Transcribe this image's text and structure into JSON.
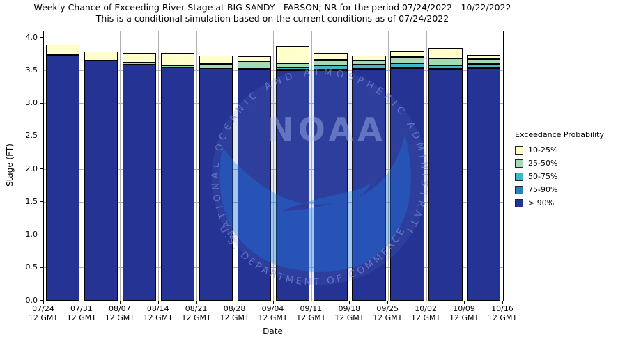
{
  "figure": {
    "title_line1": "Weekly Chance of Exceeding River Stage at BIG SANDY - FARSON; NR for the period 07/24/2022 - 10/22/2022",
    "title_line2": "This is a conditional simulation based on the current conditions as of 07/24/2022"
  },
  "legend": {
    "title": "Exceedance Probability",
    "items": [
      {
        "label": "10-25%",
        "color": "#ffffcc"
      },
      {
        "label": "25-50%",
        "color": "#a1dab4"
      },
      {
        "label": "50-75%",
        "color": "#41b6c4"
      },
      {
        "label": "75-90%",
        "color": "#2c7fb8"
      },
      {
        "label": "> 90%",
        "color": "#253494"
      }
    ]
  },
  "watermark": {
    "name": "noaa-logo",
    "ring_text_top": "NATIONAL OCEANIC AND ATMOSPHERIC ADMINISTRATION",
    "ring_text_bottom": "U.S. DEPARTMENT OF COMMERCE",
    "center_text": "NOAA"
  },
  "chart_data": {
    "type": "bar",
    "subtype": "stacked-exceedance",
    "title": "Weekly Chance of Exceeding River Stage at BIG SANDY - FARSON; NR for the period 07/24/2022 - 10/22/2022",
    "subtitle": "This is a conditional simulation based on the current conditions as of 07/24/2022",
    "xlabel": "Date",
    "ylabel": "Stage (FT)",
    "ylim": [
      0.0,
      4.09
    ],
    "ytick_step": 0.5,
    "y_ticks": [
      "0.0",
      "0.5",
      "1.0",
      "1.5",
      "2.0",
      "2.5",
      "3.0",
      "3.5",
      "4.0"
    ],
    "x_tick_dates": [
      "07/24",
      "07/31",
      "08/07",
      "08/14",
      "08/21",
      "08/28",
      "09/04",
      "09/11",
      "09/18",
      "09/25",
      "10/02",
      "10/09",
      "10/16"
    ],
    "x_tick_second_line": "12 GMT",
    "grid": true,
    "legend_position": "right",
    "series_keys_bottom_to_top": [
      "gt_90",
      "p75_90",
      "p50_75",
      "p25_50",
      "p10_25"
    ],
    "series_labels": {
      "gt_90": "> 90%",
      "p75_90": "75-90%",
      "p50_75": "50-75%",
      "p25_50": "25-50%",
      "p10_25": "10-25%"
    },
    "series_colors": {
      "gt_90": "#253494",
      "p75_90": "#2c7fb8",
      "p50_75": "#41b6c4",
      "p25_50": "#a1dab4",
      "p10_25": "#ffffcc"
    },
    "bars_cumulative_stage_tops_ft": [
      {
        "week_of": "07/24",
        "tops_ft": {
          "gt_90": 3.74,
          "p75_90": 3.74,
          "p50_75": 3.74,
          "p25_50": 3.74,
          "p10_25": 3.89
        }
      },
      {
        "week_of": "07/31",
        "tops_ft": {
          "gt_90": 3.65,
          "p75_90": 3.65,
          "p50_75": 3.65,
          "p25_50": 3.65,
          "p10_25": 3.79
        }
      },
      {
        "week_of": "08/07",
        "tops_ft": {
          "gt_90": 3.59,
          "p75_90": 3.59,
          "p50_75": 3.59,
          "p25_50": 3.62,
          "p10_25": 3.77
        }
      },
      {
        "week_of": "08/14",
        "tops_ft": {
          "gt_90": 3.54,
          "p75_90": 3.54,
          "p50_75": 3.54,
          "p25_50": 3.58,
          "p10_25": 3.77
        }
      },
      {
        "week_of": "08/21",
        "tops_ft": {
          "gt_90": 3.53,
          "p75_90": 3.53,
          "p50_75": 3.53,
          "p25_50": 3.6,
          "p10_25": 3.72
        }
      },
      {
        "week_of": "08/28",
        "tops_ft": {
          "gt_90": 3.51,
          "p75_90": 3.51,
          "p50_75": 3.53,
          "p25_50": 3.64,
          "p10_25": 3.71
        }
      },
      {
        "week_of": "09/04",
        "tops_ft": {
          "gt_90": 3.5,
          "p75_90": 3.51,
          "p50_75": 3.54,
          "p25_50": 3.61,
          "p10_25": 3.87
        }
      },
      {
        "week_of": "09/11",
        "tops_ft": {
          "gt_90": 3.5,
          "p75_90": 3.51,
          "p50_75": 3.58,
          "p25_50": 3.66,
          "p10_25": 3.77
        }
      },
      {
        "week_of": "09/18",
        "tops_ft": {
          "gt_90": 3.52,
          "p75_90": 3.53,
          "p50_75": 3.59,
          "p25_50": 3.65,
          "p10_25": 3.73
        }
      },
      {
        "week_of": "09/25",
        "tops_ft": {
          "gt_90": 3.53,
          "p75_90": 3.54,
          "p50_75": 3.61,
          "p25_50": 3.7,
          "p10_25": 3.8
        }
      },
      {
        "week_of": "10/02",
        "tops_ft": {
          "gt_90": 3.51,
          "p75_90": 3.52,
          "p50_75": 3.58,
          "p25_50": 3.68,
          "p10_25": 3.84
        }
      },
      {
        "week_of": "10/09",
        "tops_ft": {
          "gt_90": 3.53,
          "p75_90": 3.54,
          "p50_75": 3.6,
          "p25_50": 3.67,
          "p10_25": 3.74
        }
      }
    ]
  }
}
